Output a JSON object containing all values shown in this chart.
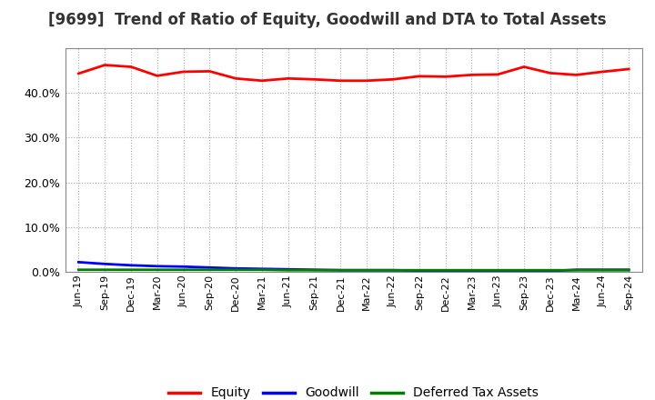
{
  "title": "[9699]  Trend of Ratio of Equity, Goodwill and DTA to Total Assets",
  "title_fontsize": 12,
  "title_color": "#333333",
  "background_color": "#ffffff",
  "plot_bg_color": "#ffffff",
  "grid_color": "#aaaaaa",
  "x_labels": [
    "Jun-19",
    "Sep-19",
    "Dec-19",
    "Mar-20",
    "Jun-20",
    "Sep-20",
    "Dec-20",
    "Mar-21",
    "Jun-21",
    "Sep-21",
    "Dec-21",
    "Mar-22",
    "Jun-22",
    "Sep-22",
    "Dec-22",
    "Mar-23",
    "Jun-23",
    "Sep-23",
    "Dec-23",
    "Mar-24",
    "Jun-24",
    "Sep-24"
  ],
  "equity": [
    0.443,
    0.462,
    0.458,
    0.438,
    0.447,
    0.448,
    0.432,
    0.427,
    0.432,
    0.43,
    0.427,
    0.427,
    0.43,
    0.437,
    0.436,
    0.44,
    0.441,
    0.458,
    0.444,
    0.44,
    0.447,
    0.453
  ],
  "goodwill": [
    0.022,
    0.018,
    0.015,
    0.013,
    0.012,
    0.01,
    0.008,
    0.007,
    0.006,
    0.005,
    0.004,
    0.004,
    0.004,
    0.003,
    0.003,
    0.002,
    0.002,
    0.002,
    0.002,
    0.005,
    0.005,
    0.005
  ],
  "dta": [
    0.005,
    0.005,
    0.005,
    0.005,
    0.005,
    0.005,
    0.005,
    0.005,
    0.004,
    0.004,
    0.004,
    0.004,
    0.004,
    0.004,
    0.004,
    0.004,
    0.004,
    0.004,
    0.004,
    0.004,
    0.004,
    0.004
  ],
  "equity_color": "#ff0000",
  "goodwill_color": "#0000ff",
  "dta_color": "#008000",
  "line_width": 2.0,
  "ylim": [
    0.0,
    0.5
  ],
  "yticks": [
    0.0,
    0.1,
    0.2,
    0.3,
    0.4
  ],
  "legend_labels": [
    "Equity",
    "Goodwill",
    "Deferred Tax Assets"
  ]
}
